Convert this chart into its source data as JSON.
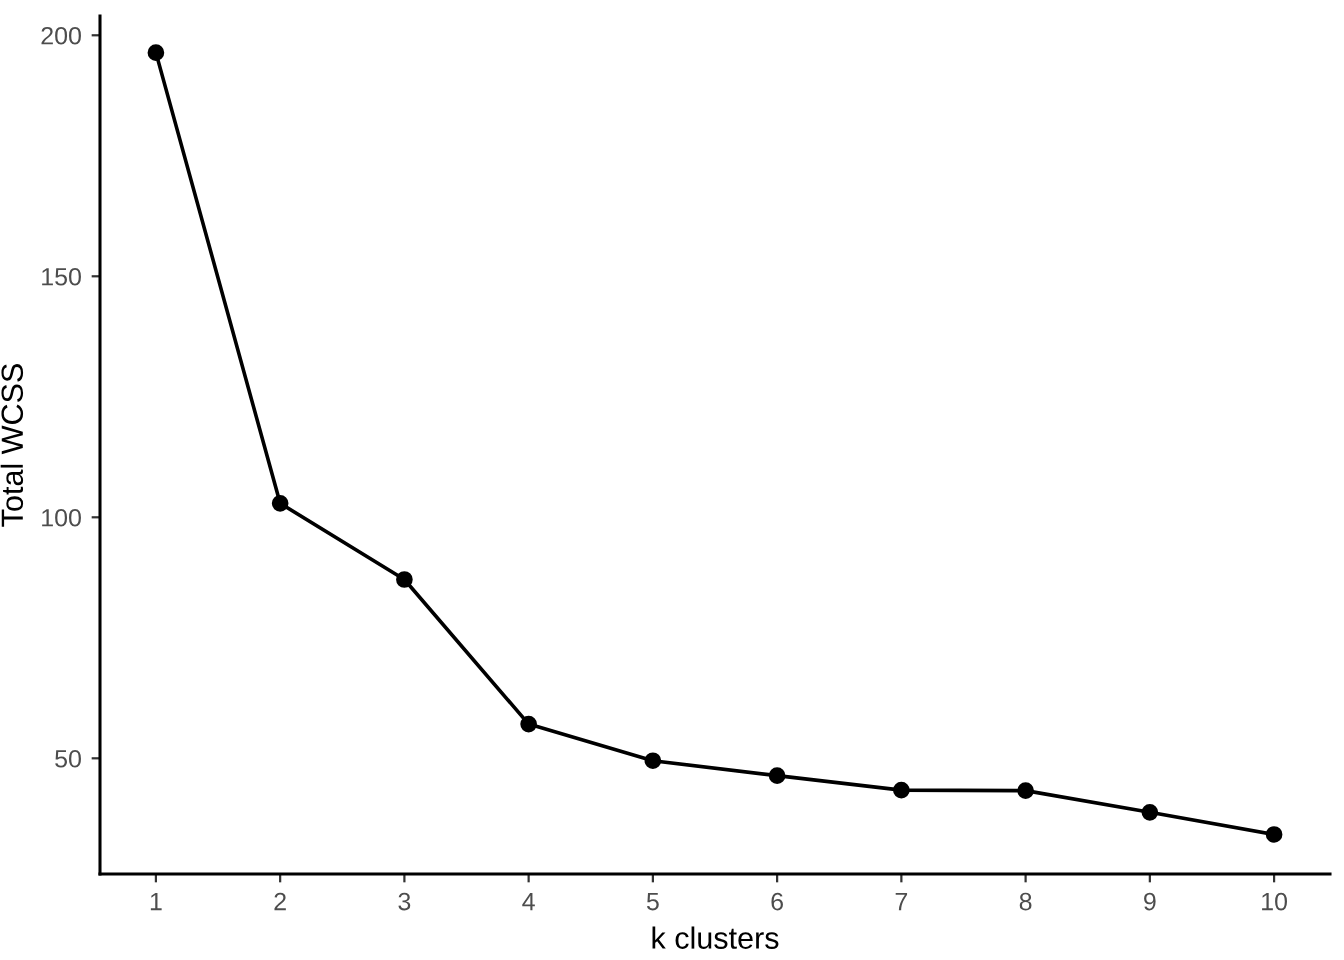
{
  "chart_data": {
    "type": "line",
    "xlabel": "k clusters",
    "ylabel": "Total WCSS",
    "x": [
      1,
      2,
      3,
      4,
      5,
      6,
      7,
      8,
      9,
      10
    ],
    "series": [
      {
        "color": "#000000",
        "values": [
          196.4,
          102.9,
          87.1,
          57.1,
          49.5,
          46.4,
          43.4,
          43.3,
          38.8,
          34.2
        ]
      }
    ],
    "xlim": [
      0.55,
      10.45
    ],
    "xticks": [
      1,
      2,
      3,
      4,
      5,
      6,
      7,
      8,
      9,
      10
    ],
    "ylim": [
      26,
      204
    ],
    "yticks": [
      50,
      100,
      150,
      200
    ],
    "marker": "circle",
    "line_style": "solid",
    "grid": false,
    "legend": false
  }
}
